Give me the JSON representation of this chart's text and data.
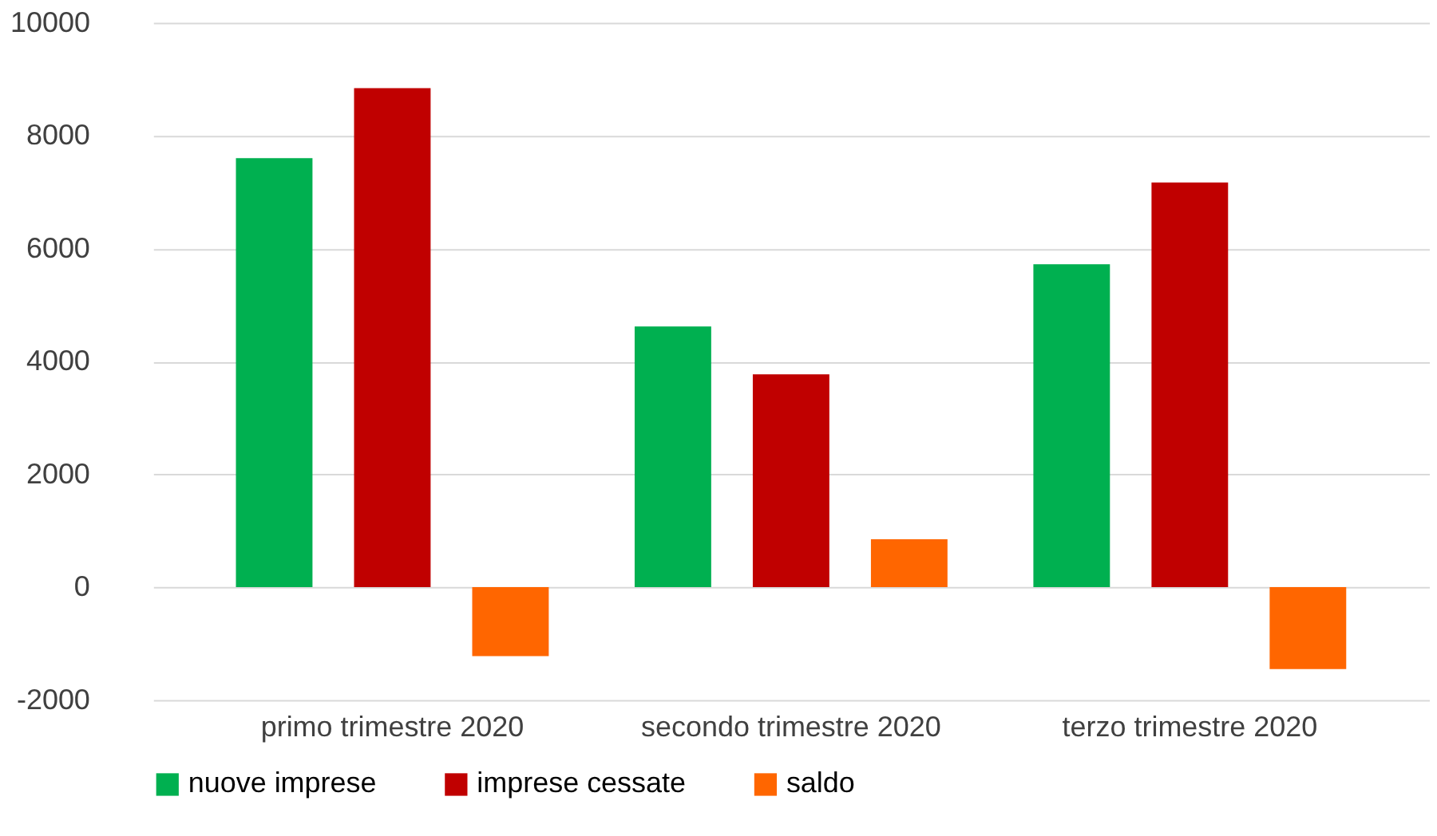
{
  "chart_data": {
    "type": "bar",
    "categories": [
      "primo trimestre 2020",
      "secondo trimestre 2020",
      "terzo trimestre 2020"
    ],
    "series": [
      {
        "name": "nuove imprese",
        "color": "#00b050",
        "values": [
          7600,
          4620,
          5720
        ]
      },
      {
        "name": "imprese cessate",
        "color": "#c00000",
        "values": [
          8840,
          3770,
          7170
        ]
      },
      {
        "name": "saldo",
        "color": "#ff6600",
        "values": [
          -1220,
          850,
          -1450
        ]
      }
    ],
    "ylim": [
      -2000,
      10000
    ],
    "yticks": [
      -2000,
      0,
      2000,
      4000,
      6000,
      8000,
      10000
    ],
    "grid": "y",
    "legend": "bottom"
  }
}
